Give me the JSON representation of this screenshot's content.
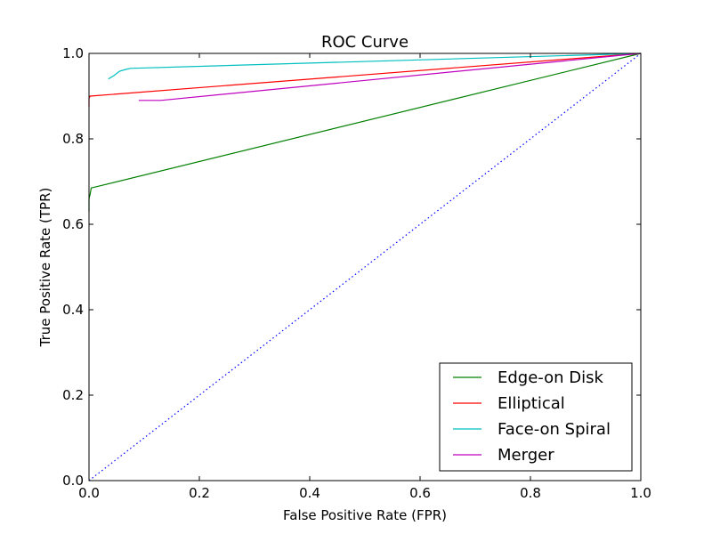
{
  "chart_data": {
    "type": "line",
    "title": "ROC Curve",
    "xlabel": "False Positive Rate (FPR)",
    "ylabel": "True Positive Rate (TPR)",
    "xlim": [
      0.0,
      1.0
    ],
    "ylim": [
      0.0,
      1.0
    ],
    "xticks": [
      "0.0",
      "0.2",
      "0.4",
      "0.6",
      "0.8",
      "1.0"
    ],
    "yticks": [
      "0.0",
      "0.2",
      "0.4",
      "0.6",
      "0.8",
      "1.0"
    ],
    "grid": false,
    "legend_position": "lower-right",
    "series": [
      {
        "name": "Edge-on Disk",
        "color": "#008000",
        "x": [
          0.0,
          0.0,
          0.002,
          0.004,
          1.0
        ],
        "y": [
          0.63,
          0.66,
          0.67,
          0.685,
          1.0
        ]
      },
      {
        "name": "Elliptical",
        "color": "#ff0000",
        "x": [
          0.0,
          0.0,
          0.002,
          1.0
        ],
        "y": [
          0.875,
          0.895,
          0.9,
          1.0
        ]
      },
      {
        "name": "Face-on Spiral",
        "color": "#00bfbf",
        "x": [
          0.035,
          0.045,
          0.055,
          0.065,
          0.075,
          1.0
        ],
        "y": [
          0.94,
          0.948,
          0.958,
          0.962,
          0.965,
          1.0
        ]
      },
      {
        "name": "Merger",
        "color": "#bf00bf",
        "x": [
          0.09,
          0.13,
          1.0
        ],
        "y": [
          0.89,
          0.89,
          1.0
        ]
      }
    ],
    "reference_line": {
      "style": "dotted",
      "color": "#0000ff",
      "x": [
        0.0,
        1.0
      ],
      "y": [
        0.0,
        1.0
      ]
    }
  }
}
